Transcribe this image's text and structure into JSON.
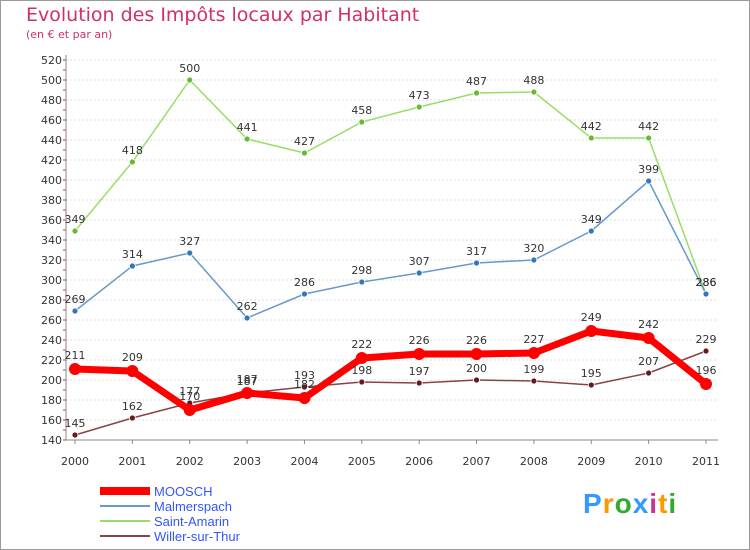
{
  "header": {
    "title": "Evolution des Impôts locaux par Habitant",
    "subtitle": "(en € et par an)"
  },
  "chart_data": {
    "type": "line",
    "title": "Evolution des Impôts locaux par Habitant",
    "subtitle": "(en € et par an)",
    "xlabel": "",
    "ylabel": "",
    "categories": [
      "2000",
      "2001",
      "2002",
      "2003",
      "2004",
      "2005",
      "2006",
      "2007",
      "2008",
      "2009",
      "2010",
      "2011"
    ],
    "ylim": [
      140,
      520
    ],
    "y_ticks": [
      140,
      160,
      180,
      200,
      220,
      240,
      260,
      280,
      300,
      320,
      340,
      360,
      380,
      400,
      420,
      440,
      460,
      480,
      500,
      520
    ],
    "grid": "horizontal",
    "legend_position": "bottom-left",
    "series": [
      {
        "name": "Saint-Amarin",
        "color": "#99dd66",
        "marker_color": "#66bb33",
        "values": [
          349,
          418,
          500,
          441,
          427,
          458,
          473,
          487,
          488,
          442,
          442,
          286
        ],
        "labels": [
          "349",
          "418",
          "500",
          "441",
          "427",
          "458",
          "473",
          "487",
          "488",
          "442",
          "442",
          "286"
        ]
      },
      {
        "name": "Malmerspach",
        "color": "#6699cc",
        "marker_color": "#3377bb",
        "values": [
          269,
          314,
          327,
          262,
          286,
          298,
          307,
          317,
          320,
          349,
          399,
          286
        ],
        "labels": [
          "269",
          "314",
          "327",
          "262",
          "286",
          "298",
          "307",
          "317",
          "320",
          "349",
          "399",
          "286"
        ]
      },
      {
        "name": "Willer-sur-Thur",
        "color": "#884444",
        "marker_color": "#661a1a",
        "values": [
          145,
          162,
          177,
          187,
          193,
          198,
          197,
          200,
          199,
          195,
          207,
          229
        ],
        "labels": [
          "145",
          "162",
          "177",
          "187",
          "193",
          "198",
          "197",
          "200",
          "199",
          "195",
          "207",
          "229"
        ]
      },
      {
        "name": "MOOSCH",
        "color": "#ff0000",
        "marker_color": "#ff0000",
        "values": [
          211,
          209,
          170,
          187,
          182,
          222,
          226,
          226,
          227,
          249,
          242,
          196
        ],
        "labels": [
          "211",
          "209",
          "170",
          "187",
          "182",
          "222",
          "226",
          "226",
          "227",
          "249",
          "242",
          "196"
        ]
      }
    ]
  },
  "legend": {
    "items": [
      {
        "name": "MOOSCH",
        "color": "#ff0000",
        "text_color": "#3355ff",
        "stroke": 8
      },
      {
        "name": "Malmerspach",
        "color": "#6699cc",
        "text_color": "#3355ff",
        "stroke": 2
      },
      {
        "name": "Saint-Amarin",
        "color": "#99dd66",
        "text_color": "#3355ff",
        "stroke": 2
      },
      {
        "name": "Willer-sur-Thur",
        "color": "#884444",
        "text_color": "#3355ff",
        "stroke": 2
      }
    ]
  },
  "logo": {
    "text": "Proxiti",
    "colors": [
      "#3399ff",
      "#ff9900",
      "#33aa33",
      "#3399ff",
      "#cc3399",
      "#ff9900",
      "#33aa33"
    ]
  }
}
